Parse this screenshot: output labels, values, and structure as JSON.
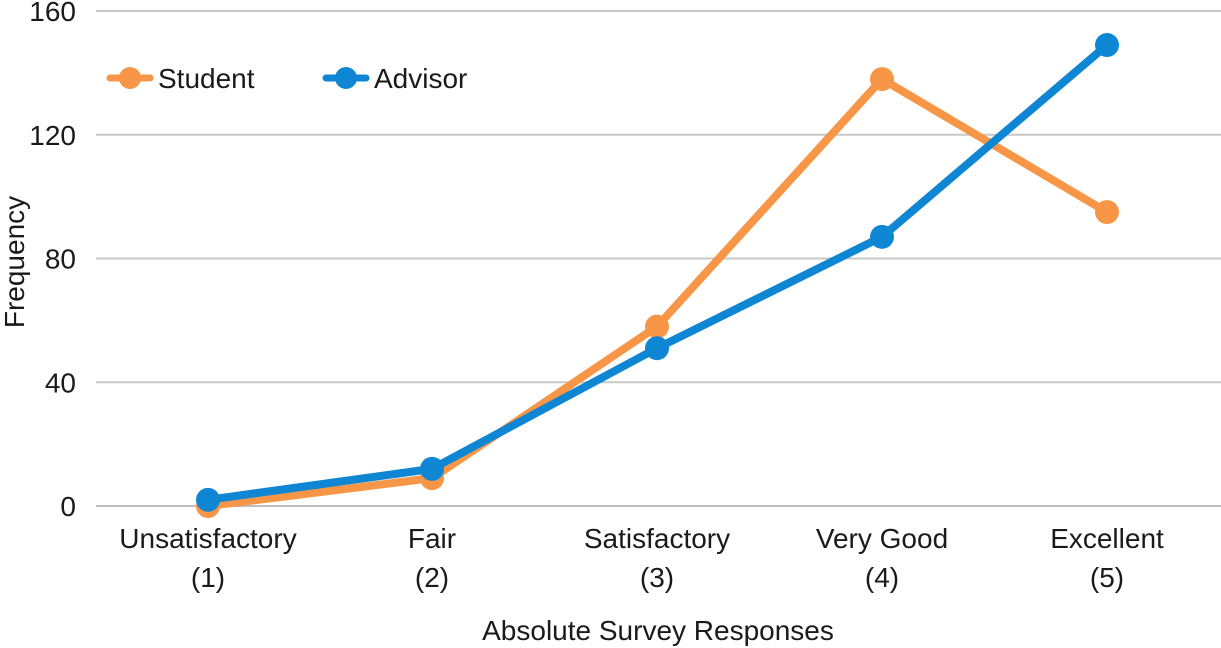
{
  "chart_data": {
    "type": "line",
    "categories": [
      [
        "Unsatisfactory",
        "(1)"
      ],
      [
        "Fair",
        "(2)"
      ],
      [
        "Satisfactory",
        "(3)"
      ],
      [
        "Very Good",
        "(4)"
      ],
      [
        "Excellent",
        "(5)"
      ]
    ],
    "series": [
      {
        "name": "Student",
        "color": "#F79646",
        "values": [
          0,
          9,
          58,
          138,
          95
        ]
      },
      {
        "name": "Advisor",
        "color": "#0E86D4",
        "values": [
          2,
          12,
          51,
          87,
          149
        ]
      }
    ],
    "title": "",
    "xlabel": "Absolute Survey Responses",
    "ylabel": "Frequency",
    "ylim": [
      0,
      160
    ],
    "yticks": [
      "0",
      "40",
      "80",
      "120",
      "160"
    ],
    "grid": true,
    "legend_position": "top-left"
  }
}
